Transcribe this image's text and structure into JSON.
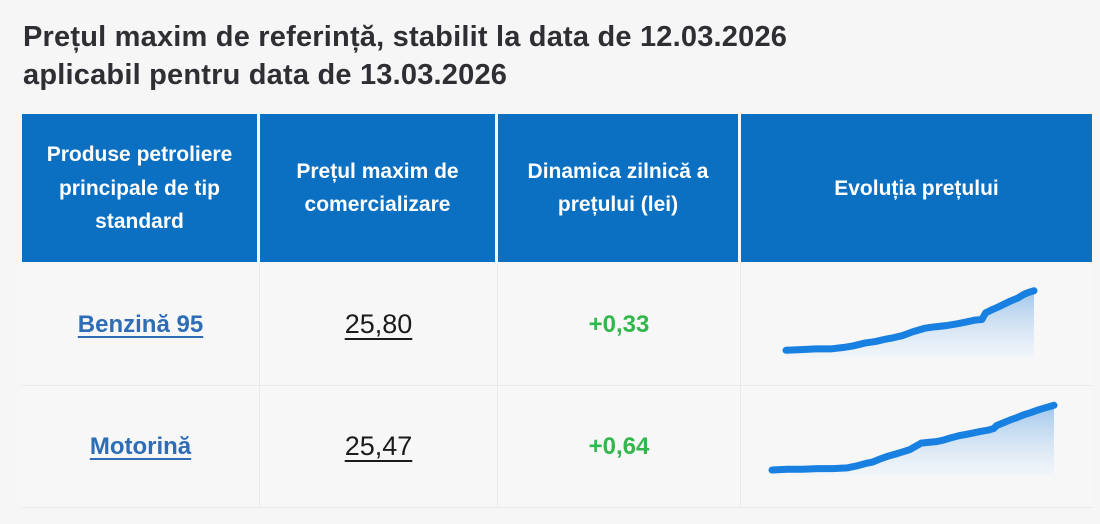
{
  "title": {
    "line1": "Prețul maxim de referință, stabilit la data de 12.03.2026",
    "line2": "aplicabil pentru data de 13.03.2026"
  },
  "table": {
    "headers": [
      "Produse petroliere principale de tip standard",
      "Prețul maxim de comercializare",
      "Dinamica zilnică a prețului (lei)",
      "Evoluția prețului"
    ],
    "rows": [
      {
        "product": "Benzină 95",
        "price": "25,80",
        "change": "+0,33"
      },
      {
        "product": "Motorină",
        "price": "25,47",
        "change": "+0,64"
      }
    ]
  },
  "colors": {
    "page_background": "#f6f6f7",
    "cell_background": "#f7f7f8",
    "accent_blue_header": "#0b70c2",
    "link_blue": "#2e6db5",
    "positive_green": "#33b74d",
    "price_text": "#1b1b1b",
    "title_text": "#2e2e33",
    "body_border": "#e9e9ec",
    "spark_line": "#1780e0",
    "spark_fill_top": "#9dc4ea",
    "spark_fill_bottom": "#eef4fb"
  },
  "chart_data": [
    {
      "type": "area",
      "title": "Evoluția prețului — Benzină 95",
      "series_name": "Benzină 95",
      "axes_visible": false,
      "note": "sparkline, rising stepped trend; points normalized x 0-100, y 0-40 (y down)",
      "baseline": 34.5,
      "points": [
        [
          0,
          31
        ],
        [
          6,
          30.7
        ],
        [
          12,
          30.4
        ],
        [
          18,
          30.4
        ],
        [
          23,
          29.8
        ],
        [
          27,
          29.1
        ],
        [
          32,
          27.8
        ],
        [
          36,
          27.2
        ],
        [
          40,
          26.2
        ],
        [
          43,
          25.6
        ],
        [
          47,
          24.6
        ],
        [
          51,
          23
        ],
        [
          56,
          21.4
        ],
        [
          60,
          20.8
        ],
        [
          65,
          20.2
        ],
        [
          69,
          19.5
        ],
        [
          73,
          18.6
        ],
        [
          76,
          17.9
        ],
        [
          79,
          17.6
        ],
        [
          80.5,
          14.7
        ],
        [
          83,
          13.4
        ],
        [
          85.5,
          12.2
        ],
        [
          88,
          10.9
        ],
        [
          90.5,
          9.6
        ],
        [
          93.4,
          8.3
        ],
        [
          95.9,
          6.7
        ],
        [
          97.9,
          5.8
        ],
        [
          100,
          5.1
        ]
      ]
    },
    {
      "type": "area",
      "title": "Evoluția prețului — Motorină",
      "series_name": "Motorină",
      "axes_visible": false,
      "note": "sparkline, rising stepped trend; points normalized x 0-100, y 0-40 (y down)",
      "baseline": 32,
      "points": [
        [
          0,
          29.7
        ],
        [
          5.4,
          29.4
        ],
        [
          10.7,
          29.4
        ],
        [
          16.1,
          29.1
        ],
        [
          21.4,
          29.1
        ],
        [
          26.8,
          28.8
        ],
        [
          30.4,
          27.9
        ],
        [
          33.2,
          27
        ],
        [
          35.7,
          26.4
        ],
        [
          38.2,
          25.2
        ],
        [
          41.1,
          24
        ],
        [
          43.9,
          23.1
        ],
        [
          46.4,
          22.2
        ],
        [
          48.9,
          21.3
        ],
        [
          51.1,
          19.8
        ],
        [
          52.9,
          18.6
        ],
        [
          55.4,
          18.3
        ],
        [
          58.2,
          18
        ],
        [
          60.7,
          17.4
        ],
        [
          63.2,
          16.5
        ],
        [
          66.1,
          15.6
        ],
        [
          68.9,
          15
        ],
        [
          71.4,
          14.4
        ],
        [
          73.9,
          13.8
        ],
        [
          76.8,
          13.2
        ],
        [
          78.6,
          12.6
        ],
        [
          79.6,
          11.4
        ],
        [
          82.1,
          10.2
        ],
        [
          84.6,
          9
        ],
        [
          86.8,
          8.1
        ],
        [
          89.3,
          6.9
        ],
        [
          91.8,
          6
        ],
        [
          93.9,
          5.1
        ],
        [
          96.4,
          4.2
        ],
        [
          98.2,
          3.6
        ],
        [
          100,
          3
        ]
      ]
    }
  ]
}
